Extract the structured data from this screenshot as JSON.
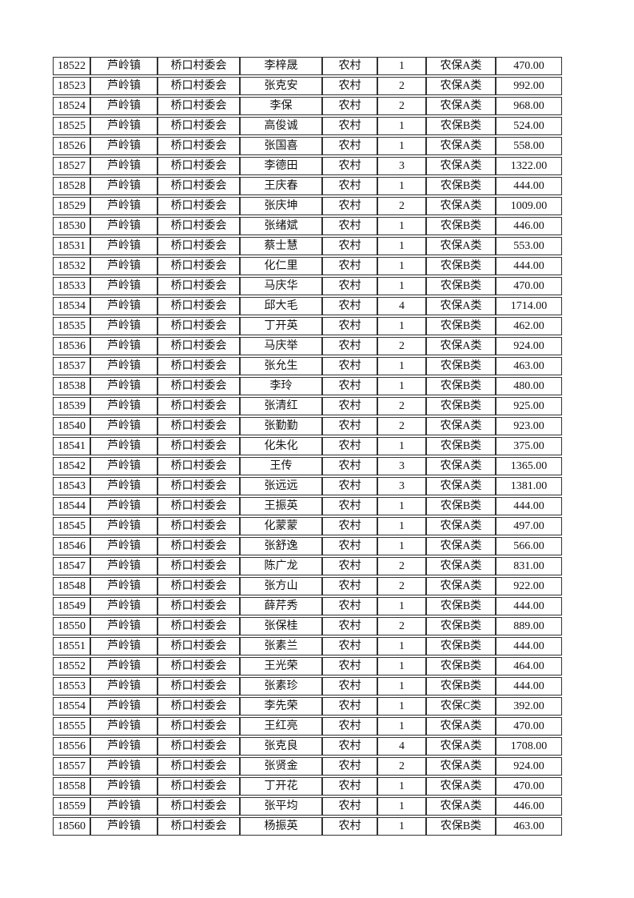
{
  "page": {
    "background_color": "#ffffff",
    "text_color": "#111111",
    "border_color": "#333333"
  },
  "table": {
    "rows": [
      [
        "18522",
        "芦岭镇",
        "桥口村委会",
        "李梓晟",
        "农村",
        "1",
        "农保A类",
        "470.00"
      ],
      [
        "18523",
        "芦岭镇",
        "桥口村委会",
        "张克安",
        "农村",
        "2",
        "农保A类",
        "992.00"
      ],
      [
        "18524",
        "芦岭镇",
        "桥口村委会",
        "李保",
        "农村",
        "2",
        "农保A类",
        "968.00"
      ],
      [
        "18525",
        "芦岭镇",
        "桥口村委会",
        "高俊诚",
        "农村",
        "1",
        "农保B类",
        "524.00"
      ],
      [
        "18526",
        "芦岭镇",
        "桥口村委会",
        "张国喜",
        "农村",
        "1",
        "农保A类",
        "558.00"
      ],
      [
        "18527",
        "芦岭镇",
        "桥口村委会",
        "李德田",
        "农村",
        "3",
        "农保A类",
        "1322.00"
      ],
      [
        "18528",
        "芦岭镇",
        "桥口村委会",
        "王庆春",
        "农村",
        "1",
        "农保B类",
        "444.00"
      ],
      [
        "18529",
        "芦岭镇",
        "桥口村委会",
        "张庆坤",
        "农村",
        "2",
        "农保A类",
        "1009.00"
      ],
      [
        "18530",
        "芦岭镇",
        "桥口村委会",
        "张绪斌",
        "农村",
        "1",
        "农保B类",
        "446.00"
      ],
      [
        "18531",
        "芦岭镇",
        "桥口村委会",
        "蔡士慧",
        "农村",
        "1",
        "农保A类",
        "553.00"
      ],
      [
        "18532",
        "芦岭镇",
        "桥口村委会",
        "化仁里",
        "农村",
        "1",
        "农保B类",
        "444.00"
      ],
      [
        "18533",
        "芦岭镇",
        "桥口村委会",
        "马庆华",
        "农村",
        "1",
        "农保B类",
        "470.00"
      ],
      [
        "18534",
        "芦岭镇",
        "桥口村委会",
        "邱大毛",
        "农村",
        "4",
        "农保A类",
        "1714.00"
      ],
      [
        "18535",
        "芦岭镇",
        "桥口村委会",
        "丁开英",
        "农村",
        "1",
        "农保B类",
        "462.00"
      ],
      [
        "18536",
        "芦岭镇",
        "桥口村委会",
        "马庆举",
        "农村",
        "2",
        "农保A类",
        "924.00"
      ],
      [
        "18537",
        "芦岭镇",
        "桥口村委会",
        "张允生",
        "农村",
        "1",
        "农保B类",
        "463.00"
      ],
      [
        "18538",
        "芦岭镇",
        "桥口村委会",
        "李玲",
        "农村",
        "1",
        "农保B类",
        "480.00"
      ],
      [
        "18539",
        "芦岭镇",
        "桥口村委会",
        "张清红",
        "农村",
        "2",
        "农保B类",
        "925.00"
      ],
      [
        "18540",
        "芦岭镇",
        "桥口村委会",
        "张勤勤",
        "农村",
        "2",
        "农保A类",
        "923.00"
      ],
      [
        "18541",
        "芦岭镇",
        "桥口村委会",
        "化朱化",
        "农村",
        "1",
        "农保B类",
        "375.00"
      ],
      [
        "18542",
        "芦岭镇",
        "桥口村委会",
        "王传",
        "农村",
        "3",
        "农保A类",
        "1365.00"
      ],
      [
        "18543",
        "芦岭镇",
        "桥口村委会",
        "张远远",
        "农村",
        "3",
        "农保A类",
        "1381.00"
      ],
      [
        "18544",
        "芦岭镇",
        "桥口村委会",
        "王振英",
        "农村",
        "1",
        "农保B类",
        "444.00"
      ],
      [
        "18545",
        "芦岭镇",
        "桥口村委会",
        "化蒙蒙",
        "农村",
        "1",
        "农保A类",
        "497.00"
      ],
      [
        "18546",
        "芦岭镇",
        "桥口村委会",
        "张舒逸",
        "农村",
        "1",
        "农保A类",
        "566.00"
      ],
      [
        "18547",
        "芦岭镇",
        "桥口村委会",
        "陈广龙",
        "农村",
        "2",
        "农保A类",
        "831.00"
      ],
      [
        "18548",
        "芦岭镇",
        "桥口村委会",
        "张方山",
        "农村",
        "2",
        "农保A类",
        "922.00"
      ],
      [
        "18549",
        "芦岭镇",
        "桥口村委会",
        "薛芹秀",
        "农村",
        "1",
        "农保B类",
        "444.00"
      ],
      [
        "18550",
        "芦岭镇",
        "桥口村委会",
        "张保桂",
        "农村",
        "2",
        "农保B类",
        "889.00"
      ],
      [
        "18551",
        "芦岭镇",
        "桥口村委会",
        "张素兰",
        "农村",
        "1",
        "农保B类",
        "444.00"
      ],
      [
        "18552",
        "芦岭镇",
        "桥口村委会",
        "王光荣",
        "农村",
        "1",
        "农保B类",
        "464.00"
      ],
      [
        "18553",
        "芦岭镇",
        "桥口村委会",
        "张素珍",
        "农村",
        "1",
        "农保B类",
        "444.00"
      ],
      [
        "18554",
        "芦岭镇",
        "桥口村委会",
        "李先荣",
        "农村",
        "1",
        "农保C类",
        "392.00"
      ],
      [
        "18555",
        "芦岭镇",
        "桥口村委会",
        "王红亮",
        "农村",
        "1",
        "农保A类",
        "470.00"
      ],
      [
        "18556",
        "芦岭镇",
        "桥口村委会",
        "张克良",
        "农村",
        "4",
        "农保A类",
        "1708.00"
      ],
      [
        "18557",
        "芦岭镇",
        "桥口村委会",
        "张贤金",
        "农村",
        "2",
        "农保A类",
        "924.00"
      ],
      [
        "18558",
        "芦岭镇",
        "桥口村委会",
        "丁开花",
        "农村",
        "1",
        "农保A类",
        "470.00"
      ],
      [
        "18559",
        "芦岭镇",
        "桥口村委会",
        "张平均",
        "农村",
        "1",
        "农保A类",
        "446.00"
      ],
      [
        "18560",
        "芦岭镇",
        "桥口村委会",
        "杨振英",
        "农村",
        "1",
        "农保B类",
        "463.00"
      ]
    ]
  }
}
